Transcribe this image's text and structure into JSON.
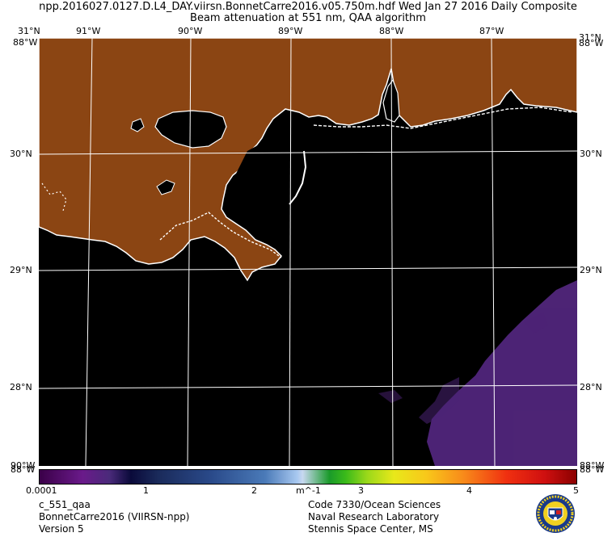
{
  "header": {
    "line1": "npp.2016027.0127.D.L4_DAY.viirsn.BonnetCarre2016.v05.750m.hdf    Wed Jan 27 2016 Daily Composite",
    "line2": "Beam attenuation at 551 nm, QAA algorithm"
  },
  "axes": {
    "top_labels": [
      "31°N",
      "91°W",
      "90°W",
      "89°W",
      "88°W",
      "87°W",
      "31°N"
    ],
    "top_labels_overlap": [
      "88°W",
      "88°W"
    ],
    "left_labels": [
      "30°N",
      "29°N",
      "28°N"
    ],
    "right_labels": [
      "30°N",
      "29°N",
      "28°N"
    ],
    "bottom_left": "90°W",
    "bottom_left_overlap": "88°W",
    "bottom_right": "88°W",
    "bottom_right_overlap": "88°W"
  },
  "colorbar": {
    "ticks": [
      "0.0001",
      "1",
      "2",
      "3",
      "4",
      "5"
    ],
    "unit": "m^-1"
  },
  "footer": {
    "left": [
      "c_551_qaa",
      "BonnetCarre2016 (VIIRSN-npp)",
      "Version 5"
    ],
    "right": [
      "Code 7330/Ocean Sciences",
      "Naval Research Laboratory",
      "Stennis Space Center, MS"
    ]
  },
  "colors": {
    "land": "#8b4513",
    "water_no_data": "#000000",
    "low_attenuation": "#5a2a8a",
    "coast": "#ffffff",
    "grid": "#ffffff"
  },
  "seal_icon": "nrl-seal-icon"
}
